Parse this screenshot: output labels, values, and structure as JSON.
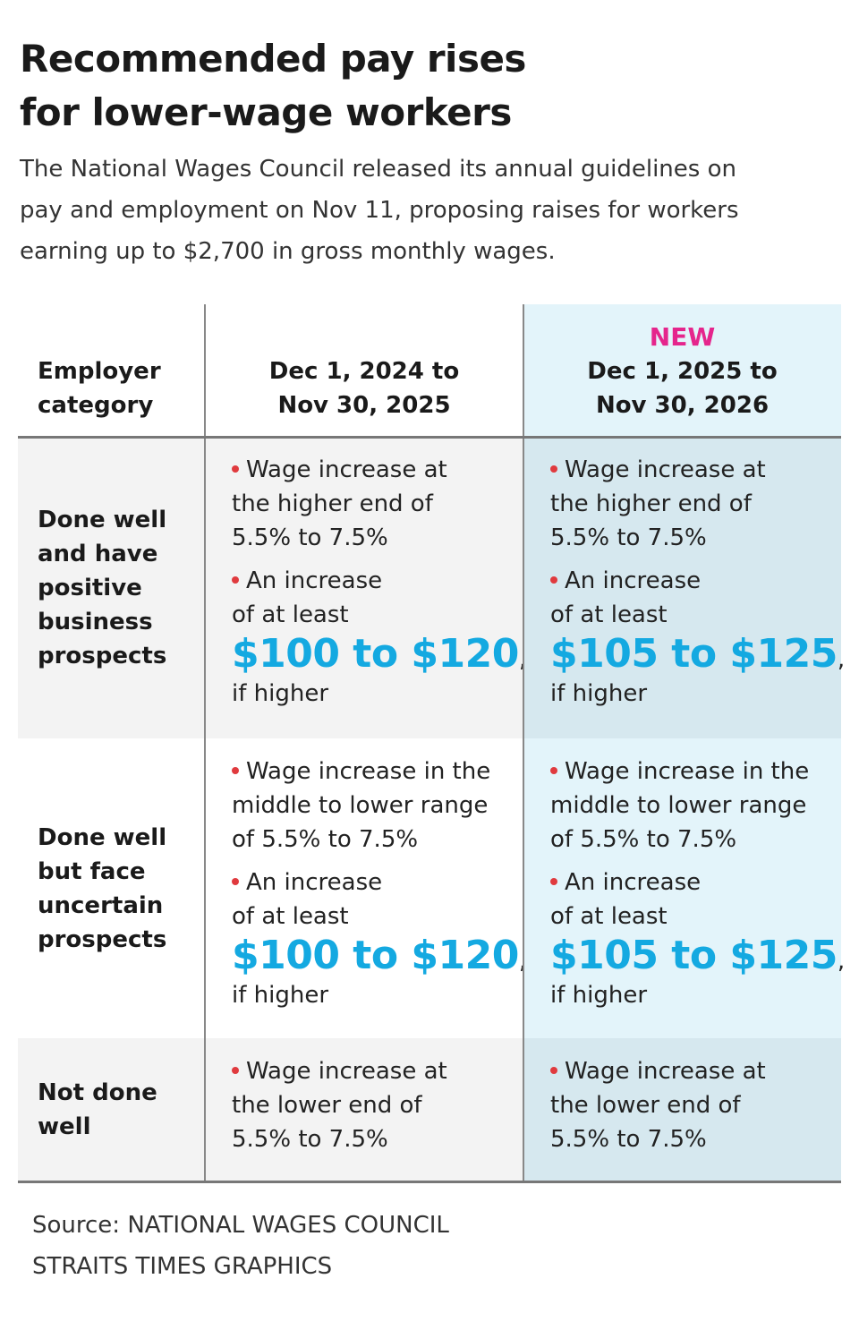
{
  "header": {
    "title": "Recommended pay rises for lower-wage workers",
    "subtitle": "The National Wages Council released its annual guidelines on pay and employment on Nov 11, proposing raises for workers earning up to $2,700 in gross monthly wages."
  },
  "table": {
    "columns": [
      {
        "lines": [
          "Employer",
          "category"
        ]
      },
      {
        "lines": [
          "Dec 1, 2024 to",
          "Nov 30, 2025"
        ]
      },
      {
        "badge": "NEW",
        "lines": [
          "Dec 1, 2025 to",
          "Nov 30, 2026"
        ]
      }
    ],
    "rows": [
      {
        "label": [
          "Done well",
          "and have",
          "positive",
          "business",
          "prospects"
        ],
        "cells": [
          [
            {
              "lines": [
                "Wage increase at",
                "the higher end of",
                "5.5% to 7.5%"
              ]
            },
            {
              "lines": [
                "An increase",
                "of at least"
              ],
              "amount": "$100 to $120",
              "after": ",",
              "tail": "if higher"
            }
          ],
          [
            {
              "lines": [
                "Wage increase at",
                "the higher end of",
                "5.5% to 7.5%"
              ]
            },
            {
              "lines": [
                "An increase",
                "of at least"
              ],
              "amount": "$105 to $125",
              "after": ",",
              "tail": "if higher"
            }
          ]
        ]
      },
      {
        "label": [
          "Done well",
          "but face",
          "uncertain",
          "prospects"
        ],
        "cells": [
          [
            {
              "lines": [
                "Wage increase in the",
                "middle to lower range",
                "of 5.5% to 7.5%"
              ]
            },
            {
              "lines": [
                "An increase",
                "of at least"
              ],
              "amount": "$100 to $120",
              "after": ",",
              "tail": "if higher"
            }
          ],
          [
            {
              "lines": [
                "Wage increase in the",
                "middle to lower range",
                "of 5.5% to 7.5%"
              ]
            },
            {
              "lines": [
                "An increase",
                "of at least"
              ],
              "amount": "$105 to $125",
              "after": ",",
              "tail": "if higher"
            }
          ]
        ]
      },
      {
        "label": [
          "Not done",
          "well"
        ],
        "cells": [
          [
            {
              "lines": [
                "Wage increase at",
                "the lower end of",
                "5.5% to 7.5%"
              ]
            }
          ],
          [
            {
              "lines": [
                "Wage increase at",
                "the lower end of",
                "5.5% to 7.5%"
              ]
            }
          ]
        ]
      }
    ]
  },
  "footer": {
    "source": "Source: NATIONAL WAGES COUNCIL",
    "credit": "STRAITS TIMES GRAPHICS"
  }
}
